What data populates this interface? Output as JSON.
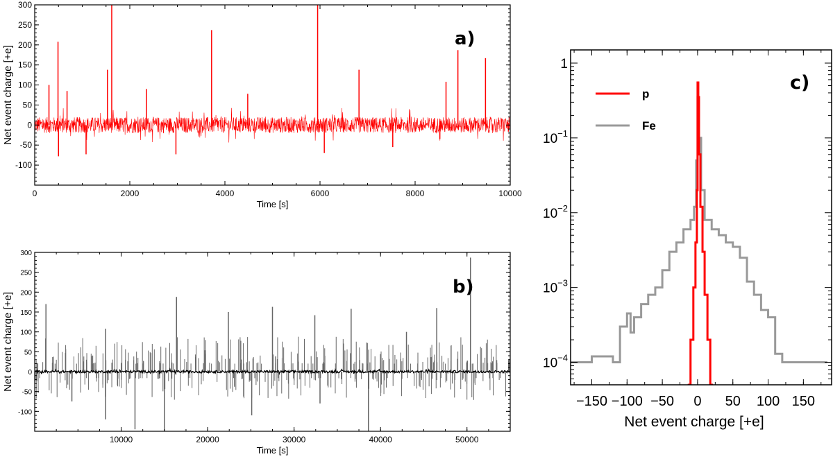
{
  "chart_data": [
    {
      "panel": "a",
      "type": "line",
      "panel_label": "a)",
      "xlabel": "Time [s]",
      "ylabel": "Net event charge [+e]",
      "xlim": [
        0,
        10000
      ],
      "ylim": [
        -150,
        300
      ],
      "xticks": [
        0,
        2000,
        4000,
        6000,
        8000,
        10000
      ],
      "yticks": [
        -100,
        -50,
        0,
        50,
        100,
        150,
        200,
        250,
        300
      ],
      "series": [
        {
          "name": "p",
          "color": "#ff0000",
          "noise_band": [
            -20,
            20
          ],
          "spikes": [
            {
              "x": 490,
              "y": 208
            },
            {
              "x": 1530,
              "y": 138
            },
            {
              "x": 1620,
              "y": 300
            },
            {
              "x": 3720,
              "y": 237
            },
            {
              "x": 5950,
              "y": 300
            },
            {
              "x": 6820,
              "y": 138
            },
            {
              "x": 8650,
              "y": 108
            },
            {
              "x": 8900,
              "y": 187
            },
            {
              "x": 9480,
              "y": 167
            },
            {
              "x": 680,
              "y": 85
            },
            {
              "x": 2350,
              "y": 90
            },
            {
              "x": 4480,
              "y": 78
            },
            {
              "x": 300,
              "y": 100
            },
            {
              "x": 500,
              "y": -78
            },
            {
              "x": 1080,
              "y": -73
            },
            {
              "x": 2970,
              "y": -73
            },
            {
              "x": 6090,
              "y": -70
            },
            {
              "x": 7530,
              "y": -55
            },
            {
              "x": 8520,
              "y": -35
            }
          ]
        }
      ]
    },
    {
      "panel": "b",
      "type": "line",
      "panel_label": "b)",
      "xlabel": "Time [s]",
      "ylabel": "Net event charge [+e]",
      "xlim": [
        0,
        55000
      ],
      "ylim": [
        -150,
        300
      ],
      "xticks": [
        10000,
        20000,
        30000,
        40000,
        50000
      ],
      "yticks": [
        -100,
        -50,
        0,
        50,
        100,
        150,
        200,
        250,
        300
      ],
      "series": [
        {
          "name": "Fe",
          "color": "#666666",
          "spikes": [
            {
              "x": 1300,
              "y": 170
            },
            {
              "x": 16400,
              "y": 188
            },
            {
              "x": 50400,
              "y": 287
            },
            {
              "x": 46500,
              "y": 160
            },
            {
              "x": 27500,
              "y": 163
            },
            {
              "x": 22400,
              "y": 150
            },
            {
              "x": 36600,
              "y": 158
            },
            {
              "x": 32400,
              "y": 142
            },
            {
              "x": 8200,
              "y": 108
            },
            {
              "x": 43000,
              "y": 100
            },
            {
              "x": 11600,
              "y": -145
            },
            {
              "x": 15000,
              "y": -150
            },
            {
              "x": 38600,
              "y": -150
            },
            {
              "x": 8200,
              "y": -120
            },
            {
              "x": 25100,
              "y": -110
            },
            {
              "x": 4300,
              "y": -75
            },
            {
              "x": 33000,
              "y": -80
            }
          ]
        },
        {
          "name": "p",
          "color": "#000000",
          "noise_band": [
            -3,
            3
          ]
        }
      ]
    },
    {
      "panel": "c",
      "type": "step",
      "panel_label": "c)",
      "xlabel": "Net event charge [+e]",
      "ylabel": "",
      "xlim": [
        -180,
        190
      ],
      "ylim_log": [
        5e-05,
        1.5
      ],
      "xticks": [
        -150,
        -100,
        -50,
        0,
        50,
        100,
        150
      ],
      "xtick_labels": [
        "−150",
        "−100",
        "−50",
        "0",
        "50",
        "100",
        "150"
      ],
      "yticks": [
        0.0001,
        0.001,
        0.01,
        0.1,
        1
      ],
      "ytick_labels": [
        {
          "base": "10",
          "exp": "−4"
        },
        {
          "base": "10",
          "exp": "−3"
        },
        {
          "base": "10",
          "exp": "−2"
        },
        {
          "base": "10",
          "exp": "−1"
        },
        {
          "base": "1",
          "exp": ""
        }
      ],
      "legend": [
        {
          "name": "p",
          "color": "#ff0000"
        },
        {
          "name": "Fe",
          "color": "#999999"
        }
      ],
      "series": [
        {
          "name": "p",
          "color": "#ff0000",
          "x": [
            -14,
            -10,
            -6,
            -3,
            -1,
            0,
            1,
            2,
            4,
            7,
            10,
            14,
            18
          ],
          "y": [
            5e-05,
            0.0002,
            0.001,
            0.004,
            0.02,
            0.55,
            0.35,
            0.06,
            0.012,
            0.003,
            0.0008,
            0.0002,
            5e-05
          ]
        },
        {
          "name": "Fe",
          "color": "#999999",
          "x": [
            -180,
            -150,
            -120,
            -110,
            -100,
            -95,
            -90,
            -80,
            -70,
            -60,
            -50,
            -40,
            -30,
            -20,
            -10,
            -5,
            -2,
            0,
            2,
            5,
            10,
            20,
            30,
            40,
            50,
            60,
            70,
            80,
            90,
            100,
            110,
            120,
            150,
            180
          ],
          "y": [
            0.0001,
            0.00012,
            0.0001,
            0.0003,
            0.00045,
            0.00025,
            0.0004,
            0.0006,
            0.0008,
            0.001,
            0.0017,
            0.003,
            0.004,
            0.006,
            0.008,
            0.012,
            0.05,
            0.35,
            0.1,
            0.02,
            0.008,
            0.006,
            0.005,
            0.004,
            0.0035,
            0.0025,
            0.0012,
            0.0008,
            0.0005,
            0.0004,
            0.00013,
            0.0001,
            0.0001,
            0.0001
          ]
        }
      ]
    }
  ]
}
